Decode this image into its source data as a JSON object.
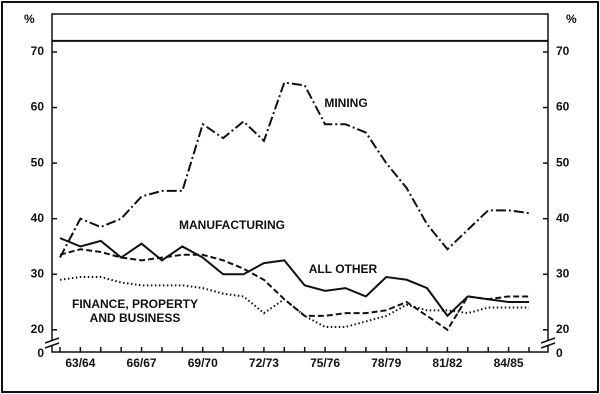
{
  "chart_data": {
    "type": "line",
    "unit": "%",
    "categories": [
      "62/63",
      "63/64",
      "64/65",
      "65/66",
      "66/67",
      "67/68",
      "68/69",
      "69/70",
      "70/71",
      "71/72",
      "72/73",
      "73/74",
      "74/75",
      "75/76",
      "76/77",
      "77/78",
      "78/79",
      "79/80",
      "80/81",
      "81/82",
      "82/83",
      "83/84",
      "84/85",
      "85/86"
    ],
    "xticklabels": [
      null,
      "63/64",
      null,
      null,
      "66/67",
      null,
      null,
      "69/70",
      null,
      null,
      "72/73",
      null,
      null,
      "75/76",
      null,
      null,
      "78/79",
      null,
      null,
      "81/82",
      null,
      null,
      "84/85",
      null
    ],
    "series": [
      {
        "name": "MINING",
        "color": "#111111",
        "dash": "dashdot",
        "values": [
          33,
          40,
          38.5,
          40,
          44,
          45,
          45,
          57,
          54.5,
          57.5,
          54,
          64.5,
          64,
          57,
          57,
          55.5,
          50,
          45.5,
          39,
          34.5,
          38,
          41.5,
          41.5,
          41
        ]
      },
      {
        "name": "MANUFACTURING",
        "color": "#111111",
        "dash": "dashed",
        "values": [
          33.5,
          34.5,
          34,
          33,
          32.5,
          33,
          33.5,
          33.5,
          32.5,
          31,
          29,
          25.5,
          22.5,
          22.5,
          23,
          23,
          23.5,
          25,
          22.5,
          20,
          26,
          25.5,
          26,
          26
        ]
      },
      {
        "name": "ALL OTHER",
        "color": "#111111",
        "dash": "solid",
        "values": [
          36.5,
          35,
          36,
          33,
          35.5,
          32.5,
          35,
          33,
          30,
          30,
          32,
          32.5,
          28,
          27,
          27.5,
          26,
          29.5,
          29,
          27.5,
          22.5,
          26,
          25.5,
          25,
          25
        ]
      },
      {
        "name": "FINANCE, PROPERTY AND BUSINESS",
        "color": "#111111",
        "dash": "dotted",
        "values": [
          29,
          29.5,
          29.5,
          28.5,
          28,
          28,
          28,
          27.5,
          26.5,
          26,
          23,
          25.5,
          22.5,
          20.5,
          20.5,
          21.5,
          22.5,
          24.5,
          23.5,
          23.5,
          23,
          24,
          24,
          24
        ]
      }
    ],
    "ylim": [
      16,
      72
    ],
    "yticks": [
      20,
      30,
      40,
      50,
      60,
      70
    ],
    "break_tick": 0
  }
}
